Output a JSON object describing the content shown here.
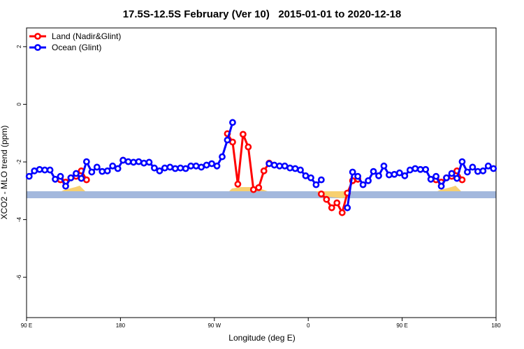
{
  "chart_data": {
    "type": "line",
    "title": "17.5S-12.5S February (Ver 10)   2015-01-01 to 2020-12-18",
    "xlabel": "Longitude (deg E)",
    "ylabel": "XCO2 - MLO trend (ppm)",
    "xlim": [
      90,
      540
    ],
    "ylim": [
      -7.4,
      2.65
    ],
    "xticks": [
      {
        "value": 90,
        "label": "90 E"
      },
      180,
      {
        "value": 270,
        "label": "90 W"
      },
      {
        "value": 360,
        "label": "0"
      },
      {
        "value": 450,
        "label": "90 E"
      },
      {
        "value": 540,
        "label": "180"
      }
    ],
    "yticks": [
      -6,
      -4,
      -2,
      0,
      2
    ],
    "legend": "upper left",
    "x": [
      92.5,
      97.5,
      102.5,
      107.5,
      112.5,
      117.5,
      122.5,
      127.5,
      132.5,
      137.5,
      142.5,
      147.5,
      152.5,
      157.5,
      162.5,
      167.5,
      172.5,
      177.5,
      182.5,
      187.5,
      192.5,
      197.5,
      202.5,
      207.5,
      212.5,
      217.5,
      222.5,
      227.5,
      232.5,
      237.5,
      242.5,
      247.5,
      252.5,
      257.5,
      262.5,
      267.5,
      272.5,
      277.5,
      282.5,
      287.5,
      292.5,
      297.5,
      302.5,
      307.5,
      312.5,
      317.5,
      322.5,
      327.5,
      332.5,
      337.5,
      342.5,
      347.5,
      352.5,
      357.5,
      362.5,
      367.5,
      372.5,
      377.5,
      382.5,
      387.5,
      392.5,
      397.5,
      402.5,
      407.5,
      412.5,
      417.5,
      422.5,
      427.5,
      432.5,
      437.5,
      442.5,
      447.5,
      452.5,
      457.5,
      462.5,
      467.5,
      472.5,
      477.5,
      482.5,
      487.5,
      492.5,
      497.5,
      502.5,
      507.5,
      512.5,
      517.5,
      522.5,
      527.5,
      532.5,
      537.5
    ],
    "series": [
      {
        "name": "Land (Nadir&Glint)",
        "color": "#ff0000",
        "values": [
          null,
          null,
          null,
          null,
          null,
          null,
          -2.62,
          -2.7,
          -2.55,
          -2.5,
          -2.31,
          -2.62,
          null,
          null,
          null,
          null,
          null,
          null,
          -1.94,
          null,
          null,
          null,
          null,
          null,
          null,
          null,
          null,
          null,
          null,
          null,
          null,
          null,
          null,
          null,
          null,
          null,
          null,
          null,
          -1.02,
          -1.31,
          -2.77,
          -1.04,
          -1.48,
          -2.96,
          -2.89,
          -2.31,
          -2.04,
          null,
          null,
          null,
          null,
          null,
          null,
          null,
          null,
          null,
          -3.11,
          -3.3,
          -3.59,
          -3.42,
          -3.76,
          -3.08,
          -2.65,
          -2.6,
          null,
          null,
          null,
          null,
          null,
          null,
          null,
          null,
          null,
          null,
          null,
          null,
          null,
          null,
          -2.62,
          -2.7,
          -2.55,
          -2.5,
          -2.31,
          -2.62,
          null,
          null,
          null,
          null,
          null,
          null
        ]
      },
      {
        "name": "Ocean (Glint)",
        "color": "#0000ff",
        "values": [
          -2.5,
          -2.31,
          -2.26,
          -2.28,
          -2.28,
          -2.6,
          -2.5,
          -2.84,
          -2.55,
          -2.4,
          -2.57,
          -1.99,
          -2.35,
          -2.18,
          -2.33,
          -2.31,
          -2.14,
          -2.23,
          -1.94,
          -1.99,
          -2.01,
          -1.99,
          -2.04,
          -2.01,
          -2.21,
          -2.31,
          -2.21,
          -2.18,
          -2.23,
          -2.21,
          -2.23,
          -2.14,
          -2.14,
          -2.18,
          -2.11,
          -2.06,
          -2.14,
          -1.82,
          -1.24,
          -0.63,
          null,
          null,
          null,
          null,
          null,
          null,
          -2.06,
          -2.11,
          -2.14,
          -2.14,
          -2.21,
          -2.23,
          -2.28,
          -2.48,
          -2.55,
          -2.79,
          -2.62,
          null,
          null,
          null,
          null,
          -3.59,
          -2.35,
          -2.5,
          -2.79,
          -2.65,
          -2.33,
          -2.48,
          -2.14,
          -2.45,
          -2.43,
          -2.38,
          -2.48,
          -2.28,
          -2.23,
          -2.26,
          -2.26,
          -2.6,
          -2.5,
          -2.84,
          -2.55,
          -2.4,
          -2.57,
          -1.99,
          -2.35,
          -2.18,
          -2.33,
          -2.31,
          -2.14,
          -2.23
        ]
      }
    ]
  }
}
